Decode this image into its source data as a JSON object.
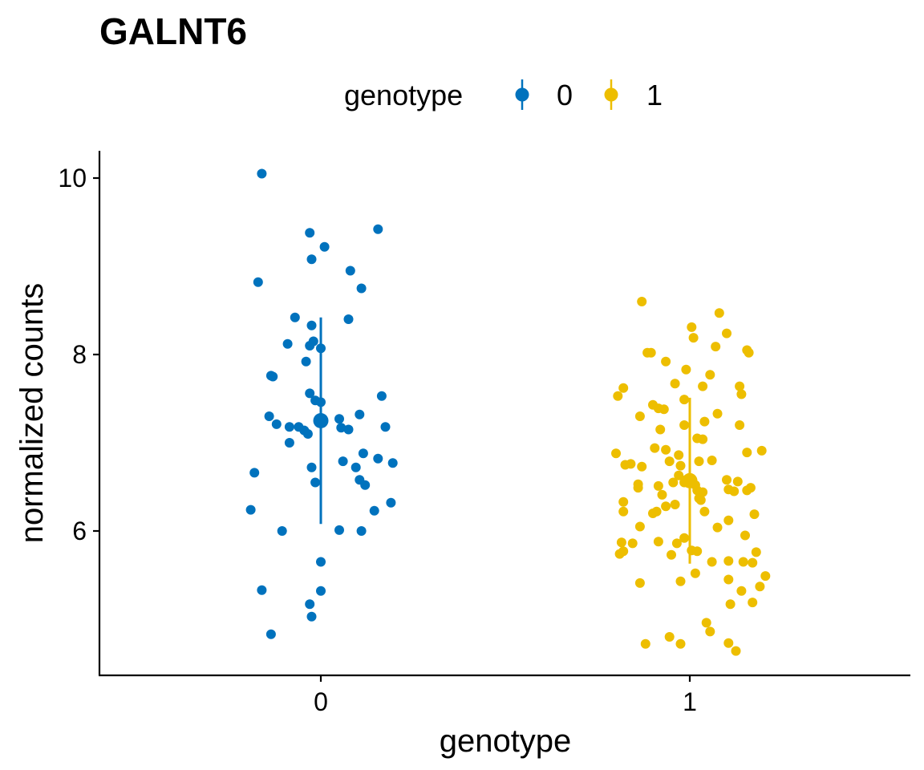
{
  "chart_data": {
    "type": "scatter",
    "title": "GALNT6",
    "xlabel": "genotype",
    "ylabel": "normalized counts",
    "categories": [
      "0",
      "1"
    ],
    "yticks": [
      6,
      8,
      10
    ],
    "ylim": [
      4.4,
      10.3
    ],
    "grid": false,
    "legend": {
      "title": "genotype",
      "position": "top",
      "entries": [
        {
          "label": "0",
          "color": "#0072BD"
        },
        {
          "label": "1",
          "color": "#EDBE00"
        }
      ]
    },
    "series": [
      {
        "name": "0",
        "color": "#0072BD",
        "summary": {
          "mean": 7.25,
          "lower": 6.08,
          "upper": 8.42
        },
        "points": [
          {
            "x": -0.16,
            "y": 10.05
          },
          {
            "x": -0.03,
            "y": 9.38
          },
          {
            "x": 0.01,
            "y": 9.22
          },
          {
            "x": 0.155,
            "y": 9.42
          },
          {
            "x": -0.025,
            "y": 9.08
          },
          {
            "x": -0.17,
            "y": 8.82
          },
          {
            "x": 0.08,
            "y": 8.95
          },
          {
            "x": 0.11,
            "y": 8.75
          },
          {
            "x": -0.07,
            "y": 8.42
          },
          {
            "x": -0.025,
            "y": 8.33
          },
          {
            "x": 0.075,
            "y": 8.4
          },
          {
            "x": -0.09,
            "y": 8.12
          },
          {
            "x": -0.02,
            "y": 8.15
          },
          {
            "x": -0.03,
            "y": 8.1
          },
          {
            "x": 0.0,
            "y": 8.07
          },
          {
            "x": -0.04,
            "y": 7.92
          },
          {
            "x": -0.135,
            "y": 7.76
          },
          {
            "x": -0.13,
            "y": 7.75
          },
          {
            "x": -0.03,
            "y": 7.56
          },
          {
            "x": -0.015,
            "y": 7.48
          },
          {
            "x": 0.0,
            "y": 7.46
          },
          {
            "x": 0.165,
            "y": 7.53
          },
          {
            "x": -0.14,
            "y": 7.3
          },
          {
            "x": -0.12,
            "y": 7.21
          },
          {
            "x": -0.085,
            "y": 7.18
          },
          {
            "x": -0.06,
            "y": 7.18
          },
          {
            "x": -0.045,
            "y": 7.14
          },
          {
            "x": -0.035,
            "y": 7.1
          },
          {
            "x": 0.05,
            "y": 7.27
          },
          {
            "x": 0.055,
            "y": 7.17
          },
          {
            "x": 0.075,
            "y": 7.15
          },
          {
            "x": 0.105,
            "y": 7.32
          },
          {
            "x": 0.175,
            "y": 7.18
          },
          {
            "x": -0.085,
            "y": 7.0
          },
          {
            "x": 0.115,
            "y": 6.88
          },
          {
            "x": 0.155,
            "y": 6.82
          },
          {
            "x": 0.06,
            "y": 6.79
          },
          {
            "x": 0.195,
            "y": 6.77
          },
          {
            "x": -0.025,
            "y": 6.72
          },
          {
            "x": 0.095,
            "y": 6.72
          },
          {
            "x": -0.18,
            "y": 6.66
          },
          {
            "x": 0.105,
            "y": 6.58
          },
          {
            "x": -0.015,
            "y": 6.55
          },
          {
            "x": 0.12,
            "y": 6.52
          },
          {
            "x": 0.19,
            "y": 6.32
          },
          {
            "x": -0.19,
            "y": 6.24
          },
          {
            "x": 0.145,
            "y": 6.23
          },
          {
            "x": -0.105,
            "y": 6.0
          },
          {
            "x": 0.05,
            "y": 6.01
          },
          {
            "x": 0.11,
            "y": 6.0
          },
          {
            "x": 0.0,
            "y": 5.65
          },
          {
            "x": -0.16,
            "y": 5.33
          },
          {
            "x": 0.0,
            "y": 5.32
          },
          {
            "x": -0.03,
            "y": 5.17
          },
          {
            "x": -0.025,
            "y": 5.03
          },
          {
            "x": -0.135,
            "y": 4.83
          }
        ]
      },
      {
        "name": "1",
        "color": "#EDBE00",
        "summary": {
          "mean": 6.57,
          "lower": 5.63,
          "upper": 7.51
        },
        "points": [
          {
            "x": -0.13,
            "y": 8.6
          },
          {
            "x": 0.08,
            "y": 8.47
          },
          {
            "x": 0.005,
            "y": 8.31
          },
          {
            "x": 0.1,
            "y": 8.24
          },
          {
            "x": 0.01,
            "y": 8.19
          },
          {
            "x": 0.07,
            "y": 8.09
          },
          {
            "x": -0.115,
            "y": 8.02
          },
          {
            "x": -0.105,
            "y": 8.02
          },
          {
            "x": 0.155,
            "y": 8.05
          },
          {
            "x": 0.16,
            "y": 8.02
          },
          {
            "x": -0.065,
            "y": 7.92
          },
          {
            "x": -0.01,
            "y": 7.83
          },
          {
            "x": 0.055,
            "y": 7.77
          },
          {
            "x": -0.04,
            "y": 7.67
          },
          {
            "x": 0.035,
            "y": 7.64
          },
          {
            "x": 0.135,
            "y": 7.64
          },
          {
            "x": 0.14,
            "y": 7.55
          },
          {
            "x": -0.18,
            "y": 7.62
          },
          {
            "x": -0.195,
            "y": 7.53
          },
          {
            "x": -0.015,
            "y": 7.49
          },
          {
            "x": -0.1,
            "y": 7.43
          },
          {
            "x": -0.085,
            "y": 7.39
          },
          {
            "x": -0.07,
            "y": 7.38
          },
          {
            "x": 0.075,
            "y": 7.33
          },
          {
            "x": -0.135,
            "y": 7.3
          },
          {
            "x": 0.04,
            "y": 7.24
          },
          {
            "x": -0.015,
            "y": 7.2
          },
          {
            "x": 0.135,
            "y": 7.2
          },
          {
            "x": -0.08,
            "y": 7.15
          },
          {
            "x": 0.02,
            "y": 7.05
          },
          {
            "x": 0.035,
            "y": 7.04
          },
          {
            "x": -0.095,
            "y": 6.94
          },
          {
            "x": -0.065,
            "y": 6.92
          },
          {
            "x": -0.03,
            "y": 6.86
          },
          {
            "x": 0.155,
            "y": 6.89
          },
          {
            "x": 0.195,
            "y": 6.91
          },
          {
            "x": -0.2,
            "y": 6.88
          },
          {
            "x": -0.175,
            "y": 6.75
          },
          {
            "x": -0.16,
            "y": 6.76
          },
          {
            "x": -0.13,
            "y": 6.73
          },
          {
            "x": -0.055,
            "y": 6.79
          },
          {
            "x": -0.025,
            "y": 6.74
          },
          {
            "x": -0.03,
            "y": 6.63
          },
          {
            "x": 0.025,
            "y": 6.79
          },
          {
            "x": 0.06,
            "y": 6.8
          },
          {
            "x": -0.01,
            "y": 6.58
          },
          {
            "x": -0.015,
            "y": 6.55
          },
          {
            "x": 0.005,
            "y": 6.57
          },
          {
            "x": 0.015,
            "y": 6.52
          },
          {
            "x": -0.045,
            "y": 6.55
          },
          {
            "x": 0.1,
            "y": 6.58
          },
          {
            "x": 0.13,
            "y": 6.56
          },
          {
            "x": -0.14,
            "y": 6.53
          },
          {
            "x": -0.14,
            "y": 6.49
          },
          {
            "x": -0.085,
            "y": 6.51
          },
          {
            "x": 0.02,
            "y": 6.46
          },
          {
            "x": 0.035,
            "y": 6.44
          },
          {
            "x": 0.105,
            "y": 6.47
          },
          {
            "x": 0.12,
            "y": 6.45
          },
          {
            "x": 0.155,
            "y": 6.46
          },
          {
            "x": 0.165,
            "y": 6.49
          },
          {
            "x": -0.075,
            "y": 6.41
          },
          {
            "x": 0.025,
            "y": 6.37
          },
          {
            "x": 0.03,
            "y": 6.35
          },
          {
            "x": -0.065,
            "y": 6.28
          },
          {
            "x": -0.04,
            "y": 6.3
          },
          {
            "x": -0.09,
            "y": 6.22
          },
          {
            "x": -0.1,
            "y": 6.2
          },
          {
            "x": -0.18,
            "y": 6.33
          },
          {
            "x": -0.18,
            "y": 6.22
          },
          {
            "x": 0.04,
            "y": 6.22
          },
          {
            "x": 0.075,
            "y": 6.04
          },
          {
            "x": 0.105,
            "y": 6.12
          },
          {
            "x": 0.175,
            "y": 6.19
          },
          {
            "x": -0.135,
            "y": 6.05
          },
          {
            "x": 0.15,
            "y": 5.95
          },
          {
            "x": -0.015,
            "y": 5.92
          },
          {
            "x": -0.185,
            "y": 5.87
          },
          {
            "x": -0.155,
            "y": 5.86
          },
          {
            "x": -0.085,
            "y": 5.88
          },
          {
            "x": -0.035,
            "y": 5.86
          },
          {
            "x": 0.005,
            "y": 5.78
          },
          {
            "x": 0.02,
            "y": 5.77
          },
          {
            "x": -0.18,
            "y": 5.77
          },
          {
            "x": -0.19,
            "y": 5.74
          },
          {
            "x": -0.05,
            "y": 5.73
          },
          {
            "x": 0.06,
            "y": 5.65
          },
          {
            "x": 0.105,
            "y": 5.66
          },
          {
            "x": 0.145,
            "y": 5.65
          },
          {
            "x": 0.18,
            "y": 5.76
          },
          {
            "x": 0.17,
            "y": 5.64
          },
          {
            "x": 0.015,
            "y": 5.52
          },
          {
            "x": 0.105,
            "y": 5.45
          },
          {
            "x": 0.205,
            "y": 5.49
          },
          {
            "x": 0.19,
            "y": 5.37
          },
          {
            "x": -0.135,
            "y": 5.41
          },
          {
            "x": -0.025,
            "y": 5.43
          },
          {
            "x": 0.14,
            "y": 5.32
          },
          {
            "x": 0.11,
            "y": 5.17
          },
          {
            "x": 0.17,
            "y": 5.19
          },
          {
            "x": 0.045,
            "y": 4.96
          },
          {
            "x": 0.055,
            "y": 4.86
          },
          {
            "x": -0.055,
            "y": 4.8
          },
          {
            "x": -0.12,
            "y": 4.72
          },
          {
            "x": -0.025,
            "y": 4.72
          },
          {
            "x": 0.105,
            "y": 4.73
          },
          {
            "x": 0.125,
            "y": 4.64
          }
        ]
      }
    ]
  }
}
